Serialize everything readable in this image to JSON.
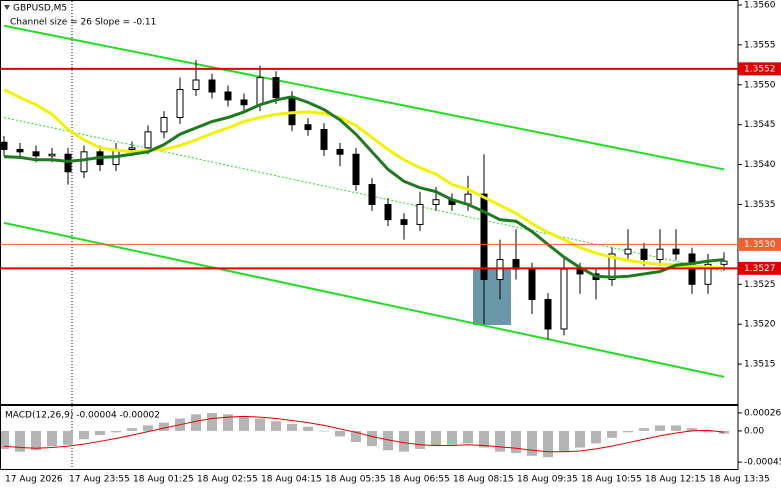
{
  "chart_data": [
    {
      "type": "candlestick",
      "title": "GBPUSD,M5",
      "subtitle": "Channel size = 26 Slope = -0.11",
      "categories": [
        "17 Aug 2026",
        null,
        null,
        null,
        "17 Aug 23:55",
        null,
        null,
        null,
        "18 Aug 01:25",
        null,
        null,
        null,
        "18 Aug 02:55",
        null,
        null,
        null,
        "18 Aug 04:15",
        null,
        null,
        null,
        "18 Aug 05:35",
        null,
        null,
        null,
        "18 Aug 06:55",
        null,
        null,
        null,
        "18 Aug 08:15",
        null,
        null,
        null,
        "18 Aug 09:35",
        null,
        null,
        null,
        "18 Aug 10:55",
        null,
        null,
        null,
        "18 Aug 12:15",
        null,
        null,
        null,
        "18 Aug 13:35",
        null
      ],
      "open": [
        1.35428,
        1.35419,
        1.35416,
        1.35411,
        1.35413,
        1.35391,
        1.35416,
        1.354,
        1.35419,
        1.35421,
        1.35441,
        1.35459,
        1.35494,
        1.35506,
        1.35491,
        1.35481,
        1.35475,
        1.35509,
        1.35484,
        1.3545,
        1.35444,
        1.35419,
        1.35413,
        1.35375,
        1.3535,
        1.35331,
        1.35325,
        1.3535,
        1.35356,
        1.3535,
        1.35363,
        1.35256,
        1.35281,
        1.35269,
        1.35231,
        1.35194,
        1.35269,
        1.35263,
        1.35256,
        1.35288,
        1.35294,
        1.35281,
        1.35294,
        1.35288,
        1.3525,
        1.35275
      ],
      "high": [
        1.35436,
        1.35427,
        1.35424,
        1.35421,
        1.35421,
        1.35424,
        1.35424,
        1.35427,
        1.35429,
        1.35449,
        1.35467,
        1.35509,
        1.35531,
        1.35514,
        1.35499,
        1.35489,
        1.35524,
        1.35517,
        1.35492,
        1.35458,
        1.35452,
        1.35427,
        1.35421,
        1.35383,
        1.35358,
        1.35339,
        1.35366,
        1.35372,
        1.35364,
        1.35386,
        1.35413,
        1.35306,
        1.35319,
        1.35277,
        1.35239,
        1.35283,
        1.35277,
        1.35271,
        1.35296,
        1.35319,
        1.35302,
        1.35319,
        1.35319,
        1.35296,
        1.35288,
        1.3529
      ],
      "low": [
        1.35411,
        1.35408,
        1.35403,
        1.35403,
        1.35375,
        1.35383,
        1.35392,
        1.35392,
        1.35411,
        1.35413,
        1.35433,
        1.35451,
        1.35486,
        1.35483,
        1.35473,
        1.35467,
        1.35467,
        1.35476,
        1.35442,
        1.35436,
        1.35411,
        1.35398,
        1.35367,
        1.35342,
        1.35323,
        1.35306,
        1.35317,
        1.35342,
        1.35342,
        1.35342,
        1.352,
        1.35231,
        1.35256,
        1.35213,
        1.35181,
        1.35186,
        1.35238,
        1.35231,
        1.35248,
        1.3528,
        1.35273,
        1.35273,
        1.3528,
        1.35238,
        1.35238,
        1.35267
      ],
      "close": [
        1.35419,
        1.35416,
        1.35411,
        1.35413,
        1.35391,
        1.35416,
        1.354,
        1.35419,
        1.35421,
        1.35441,
        1.35459,
        1.35494,
        1.35506,
        1.35491,
        1.35481,
        1.35475,
        1.35509,
        1.35484,
        1.3545,
        1.35444,
        1.35419,
        1.35413,
        1.35375,
        1.3535,
        1.35331,
        1.35325,
        1.3535,
        1.35356,
        1.3535,
        1.35363,
        1.35256,
        1.35281,
        1.35269,
        1.35231,
        1.35194,
        1.35269,
        1.35263,
        1.35256,
        1.35288,
        1.35294,
        1.35281,
        1.35294,
        1.35288,
        1.3525,
        1.35275,
        1.35279
      ],
      "up_color": "#ffffff",
      "down_color": "#000000",
      "series": [
        {
          "color": "#f2f200",
          "values": [
            1.35494,
            1.35484,
            1.35475,
            1.35463,
            1.35444,
            1.35431,
            1.35421,
            1.35418,
            1.35416,
            1.35418,
            1.35419,
            1.35424,
            1.35431,
            1.35439,
            1.35446,
            1.35454,
            1.35459,
            1.35463,
            1.35465,
            1.35466,
            1.35464,
            1.35459,
            1.35449,
            1.35434,
            1.35419,
            1.35406,
            1.35396,
            1.35388,
            1.35375,
            1.35369,
            1.35359,
            1.35349,
            1.35339,
            1.35326,
            1.35315,
            1.35306,
            1.35296,
            1.35289,
            1.35284,
            1.3528,
            1.35277,
            1.35275,
            1.35274,
            1.35273,
            1.35271,
            1.35271
          ]
        },
        {
          "color": "#1e7a1e",
          "values": [
            1.3541,
            1.35409,
            1.35406,
            1.35406,
            1.35404,
            1.35406,
            1.35409,
            1.3541,
            1.35413,
            1.35416,
            1.35425,
            1.35438,
            1.35446,
            1.35454,
            1.35459,
            1.35466,
            1.35475,
            1.35481,
            1.35485,
            1.35478,
            1.35469,
            1.35456,
            1.35438,
            1.35416,
            1.35394,
            1.35379,
            1.35371,
            1.35366,
            1.35356,
            1.3535,
            1.35341,
            1.35331,
            1.35329,
            1.35316,
            1.353,
            1.35284,
            1.35271,
            1.3526,
            1.35259,
            1.3526,
            1.35263,
            1.35266,
            1.35274,
            1.35276,
            1.35279,
            1.35281
          ]
        }
      ],
      "channel": {
        "color": "#22dd22",
        "upper": [
          1.35574,
          1.35394
        ],
        "lower": [
          1.35327,
          1.35134
        ],
        "middle": [
          1.35459,
          1.35266
        ]
      },
      "levels": [
        {
          "value": 1.3552,
          "color": "#e00000"
        },
        {
          "value": 1.353,
          "label": "1.3530",
          "color": "#f06030"
        },
        {
          "value": 1.3527,
          "color": "#e00000"
        }
      ],
      "ylim": [
        1.351,
        1.35605
      ],
      "yticks": [
        1.3515,
        {
          "value": 1.352,
          "label": "1.3520"
        },
        1.3525,
        {
          "value": 1.353,
          "label": "1.3530"
        },
        1.3535,
        {
          "value": 1.354,
          "label": "1.3540"
        },
        1.3545,
        {
          "value": 1.355,
          "label": "1.3550"
        },
        1.3555,
        {
          "value": 1.356,
          "label": "1.3560"
        }
      ]
    },
    {
      "type": "macd",
      "title": "MACD(12,26,9) -0.00004 -0.00002",
      "color": "#b4b4b4",
      "signal_color": "#e00000",
      "values": [
        -0.00026,
        -0.0003,
        -0.00028,
        -0.00022,
        -0.0002,
        -0.00012,
        -6e-05,
        -2e-05,
        4e-05,
        8e-05,
        0.00012,
        0.00018,
        0.00024,
        0.00026,
        0.00024,
        0.0002,
        0.00018,
        0.00014,
        0.0001,
        6e-05,
        0.0,
        -8e-05,
        -0.00016,
        -0.00022,
        -0.00028,
        -0.0003,
        -0.00026,
        -0.00022,
        -0.0002,
        -0.00018,
        -0.00024,
        -0.0003,
        -0.00032,
        -0.00036,
        -0.00038,
        -0.0003,
        -0.00024,
        -0.00018,
        -0.0001,
        -2e-05,
        4e-05,
        8e-05,
        8e-05,
        4e-05,
        -2e-05,
        -4e-05
      ],
      "signal": [
        -0.00022,
        -0.00024,
        -0.00025,
        -0.00024,
        -0.00022,
        -0.00019,
        -0.00015,
        -0.00011,
        -6e-05,
        -1e-05,
        4e-05,
        9e-05,
        0.00014,
        0.00018,
        0.0002,
        0.00021,
        0.0002,
        0.00018,
        0.00015,
        0.00012,
        8e-05,
        3e-05,
        -2e-05,
        -8e-05,
        -0.00013,
        -0.00017,
        -0.0002,
        -0.00021,
        -0.00021,
        -0.0002,
        -0.00021,
        -0.00023,
        -0.00025,
        -0.00028,
        -0.0003,
        -0.0003,
        -0.00029,
        -0.00026,
        -0.00022,
        -0.00017,
        -0.00012,
        -7e-05,
        -3e-05,
        0.0,
        1e-05,
        -2e-05
      ],
      "ylim": [
        -0.00055,
        0.00036
      ],
      "yticks": [
        0.00026,
        {
          "value": 0,
          "label": "0.00"
        },
        -0.00045
      ]
    }
  ]
}
